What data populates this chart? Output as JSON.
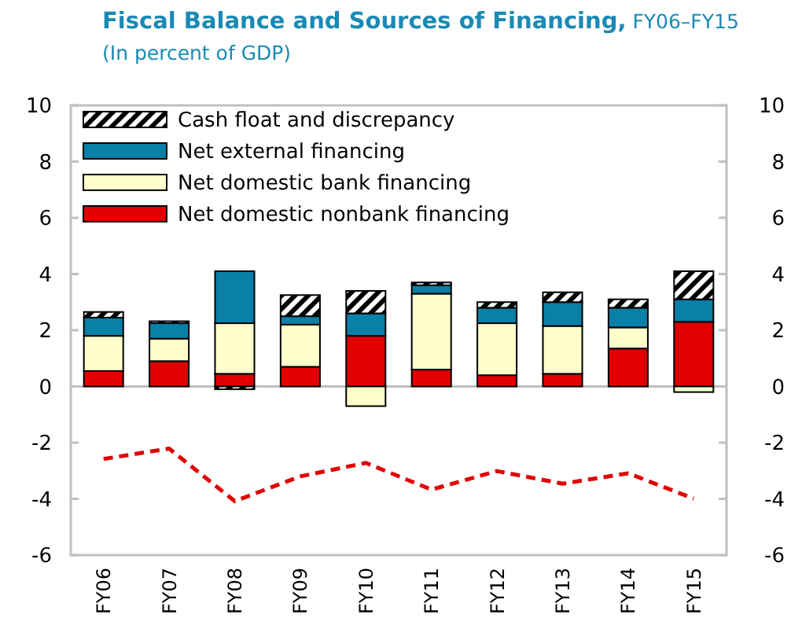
{
  "chart_data": {
    "type": "bar",
    "title": "Fiscal Balance and Sources of Financing, FY06–FY15",
    "subtitle": "(In percent of GDP)",
    "categories": [
      "FY06",
      "FY07",
      "FY08",
      "FY09",
      "FY10",
      "FY11",
      "FY12",
      "FY13",
      "FY14",
      "FY15"
    ],
    "stacked": true,
    "legend": "top left",
    "grid": false,
    "ref_lines": [
      {
        "axis": "y",
        "value": 0,
        "color": "#c0c0c0"
      }
    ],
    "ylim": [
      -6,
      10
    ],
    "yticks": [
      -6,
      -4,
      -2,
      0,
      2,
      4,
      6,
      8,
      10
    ],
    "y2lim": [
      -6,
      10
    ],
    "y2ticks": [
      -6,
      -4,
      -2,
      0,
      2,
      4,
      6,
      8,
      10
    ],
    "series": [
      {
        "name": "Net domestic nonbank financing",
        "color": "#e00000",
        "values": [
          0.55,
          0.9,
          0.45,
          0.7,
          1.8,
          0.6,
          0.4,
          0.45,
          1.35,
          2.3
        ]
      },
      {
        "name": "Net domestic bank financing",
        "color": "#ffffcc",
        "values": [
          1.25,
          0.8,
          1.8,
          1.5,
          -0.7,
          2.7,
          1.85,
          1.7,
          0.75,
          -0.2
        ]
      },
      {
        "name": "Net external financing",
        "color": "#0a80a8",
        "values": [
          0.65,
          0.55,
          1.85,
          0.3,
          0.8,
          0.3,
          0.55,
          0.85,
          0.7,
          0.8
        ]
      },
      {
        "name": "Cash float and discrepancy",
        "color": "#000000",
        "values": [
          0.2,
          0.07,
          -0.1,
          0.75,
          0.8,
          0.1,
          0.2,
          0.35,
          0.3,
          1.0
        ]
      },
      {
        "type": "line",
        "color": "#e00000",
        "line_style": "dashed",
        "marker": "none",
        "values": [
          -2.58,
          -2.21,
          -4.08,
          -3.2,
          -2.72,
          -3.67,
          -3.01,
          -3.46,
          -3.09,
          -3.99
        ]
      }
    ]
  }
}
